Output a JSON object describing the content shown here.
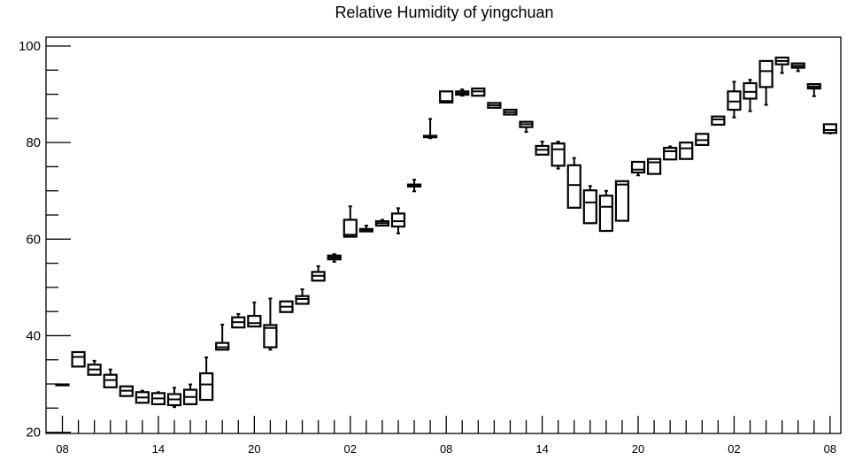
{
  "chart_data": {
    "type": "box",
    "title": "Relative Humidity of yingchuan",
    "xlabel": "",
    "ylabel": "",
    "ylim": [
      20,
      101.5
    ],
    "y_ticks": [
      "20",
      "40",
      "60",
      "80",
      "100"
    ],
    "x_ticks": [
      "08",
      "14",
      "20",
      "02",
      "08",
      "14",
      "20",
      "02",
      "08"
    ],
    "grid": false,
    "boxes": [
      {
        "hour": 0,
        "min": 29.9,
        "q1": 29.9,
        "median": 29.9,
        "q3": 29.9,
        "max": 29.9
      },
      {
        "hour": 1,
        "min": 33.6,
        "q1": 33.6,
        "median": 35.6,
        "q3": 36.6,
        "max": 36.6
      },
      {
        "hour": 2,
        "min": 31.9,
        "q1": 31.9,
        "median": 33.0,
        "q3": 34.0,
        "max": 34.8
      },
      {
        "hour": 3,
        "min": 29.3,
        "q1": 29.3,
        "median": 30.8,
        "q3": 31.9,
        "max": 33.0
      },
      {
        "hour": 4,
        "min": 27.5,
        "q1": 27.5,
        "median": 28.6,
        "q3": 29.5,
        "max": 29.5
      },
      {
        "hour": 5,
        "min": 26.1,
        "q1": 26.1,
        "median": 27.2,
        "q3": 28.3,
        "max": 28.6
      },
      {
        "hour": 6,
        "min": 25.8,
        "q1": 25.8,
        "median": 27.0,
        "q3": 28.1,
        "max": 28.3
      },
      {
        "hour": 7,
        "min": 25.2,
        "q1": 25.6,
        "median": 26.8,
        "q3": 27.9,
        "max": 29.2
      },
      {
        "hour": 8,
        "min": 25.8,
        "q1": 25.8,
        "median": 27.3,
        "q3": 28.8,
        "max": 29.9
      },
      {
        "hour": 9,
        "min": 26.7,
        "q1": 26.7,
        "median": 29.9,
        "q3": 32.2,
        "max": 35.5
      },
      {
        "hour": 10,
        "min": 37.1,
        "q1": 37.1,
        "median": 37.6,
        "q3": 38.5,
        "max": 42.3
      },
      {
        "hour": 11,
        "min": 41.7,
        "q1": 41.7,
        "median": 42.8,
        "q3": 43.8,
        "max": 44.5
      },
      {
        "hour": 12,
        "min": 41.9,
        "q1": 41.9,
        "median": 42.6,
        "q3": 44.1,
        "max": 46.9
      },
      {
        "hour": 13,
        "min": 37.1,
        "q1": 37.6,
        "median": 41.6,
        "q3": 42.2,
        "max": 47.7
      },
      {
        "hour": 14,
        "min": 44.9,
        "q1": 44.9,
        "median": 46.0,
        "q3": 47.1,
        "max": 47.1
      },
      {
        "hour": 15,
        "min": 46.6,
        "q1": 46.6,
        "median": 47.6,
        "q3": 48.2,
        "max": 49.6
      },
      {
        "hour": 16,
        "min": 51.4,
        "q1": 51.4,
        "median": 52.4,
        "q3": 53.2,
        "max": 54.4
      },
      {
        "hour": 17,
        "min": 55.3,
        "q1": 55.8,
        "median": 56.2,
        "q3": 56.6,
        "max": 56.9
      },
      {
        "hour": 18,
        "min": 60.5,
        "q1": 60.5,
        "median": 60.9,
        "q3": 64.0,
        "max": 66.8
      },
      {
        "hour": 19,
        "min": 61.6,
        "q1": 61.6,
        "median": 61.9,
        "q3": 62.1,
        "max": 62.8
      },
      {
        "hour": 20,
        "min": 62.8,
        "q1": 62.8,
        "median": 63.3,
        "q3": 63.7,
        "max": 64.0
      },
      {
        "hour": 21,
        "min": 61.2,
        "q1": 62.6,
        "median": 63.7,
        "q3": 65.3,
        "max": 66.4
      },
      {
        "hour": 22,
        "min": 69.9,
        "q1": 70.9,
        "median": 71.1,
        "q3": 71.3,
        "max": 72.3
      },
      {
        "hour": 23,
        "min": 80.9,
        "q1": 81.1,
        "median": 81.2,
        "q3": 81.4,
        "max": 84.9
      },
      {
        "hour": 24,
        "min": 88.3,
        "q1": 88.3,
        "median": 88.6,
        "q3": 90.6,
        "max": 90.6
      },
      {
        "hour": 25,
        "min": 89.7,
        "q1": 89.9,
        "median": 90.2,
        "q3": 90.6,
        "max": 91.0
      },
      {
        "hour": 26,
        "min": 89.7,
        "q1": 89.7,
        "median": 90.6,
        "q3": 91.2,
        "max": 91.2
      },
      {
        "hour": 27,
        "min": 87.2,
        "q1": 87.2,
        "median": 87.7,
        "q3": 88.2,
        "max": 88.2
      },
      {
        "hour": 28,
        "min": 85.8,
        "q1": 85.8,
        "median": 86.3,
        "q3": 86.8,
        "max": 86.8
      },
      {
        "hour": 29,
        "min": 82.2,
        "q1": 83.2,
        "median": 83.8,
        "q3": 84.3,
        "max": 84.3
      },
      {
        "hour": 30,
        "min": 77.5,
        "q1": 77.5,
        "median": 78.5,
        "q3": 79.3,
        "max": 80.2
      },
      {
        "hour": 31,
        "min": 74.6,
        "q1": 75.2,
        "median": 78.6,
        "q3": 79.8,
        "max": 80.2
      },
      {
        "hour": 32,
        "min": 66.5,
        "q1": 66.5,
        "median": 71.2,
        "q3": 75.3,
        "max": 76.8
      },
      {
        "hour": 33,
        "min": 63.3,
        "q1": 63.3,
        "median": 67.6,
        "q3": 70.1,
        "max": 71.0
      },
      {
        "hour": 34,
        "min": 61.7,
        "q1": 61.7,
        "median": 66.7,
        "q3": 69.0,
        "max": 70.0
      },
      {
        "hour": 35,
        "min": 63.8,
        "q1": 63.8,
        "median": 71.3,
        "q3": 72.0,
        "max": 72.0
      },
      {
        "hour": 36,
        "min": 73.2,
        "q1": 73.8,
        "median": 74.4,
        "q3": 76.0,
        "max": 76.0
      },
      {
        "hour": 37,
        "min": 73.5,
        "q1": 73.5,
        "median": 75.9,
        "q3": 76.6,
        "max": 76.6
      },
      {
        "hour": 38,
        "min": 76.5,
        "q1": 76.5,
        "median": 78.2,
        "q3": 78.9,
        "max": 79.2
      },
      {
        "hour": 39,
        "min": 76.6,
        "q1": 76.6,
        "median": 78.8,
        "q3": 80.0,
        "max": 80.0
      },
      {
        "hour": 40,
        "min": 79.5,
        "q1": 79.5,
        "median": 80.5,
        "q3": 81.8,
        "max": 81.8
      },
      {
        "hour": 41,
        "min": 83.7,
        "q1": 83.7,
        "median": 84.8,
        "q3": 85.4,
        "max": 85.4
      },
      {
        "hour": 42,
        "min": 85.2,
        "q1": 86.8,
        "median": 88.5,
        "q3": 90.6,
        "max": 92.6
      },
      {
        "hour": 43,
        "min": 86.5,
        "q1": 89.1,
        "median": 90.5,
        "q3": 92.3,
        "max": 93.0
      },
      {
        "hour": 44,
        "min": 87.8,
        "q1": 91.5,
        "median": 94.8,
        "q3": 96.9,
        "max": 96.9
      },
      {
        "hour": 45,
        "min": 94.4,
        "q1": 96.2,
        "median": 96.9,
        "q3": 97.6,
        "max": 97.6
      },
      {
        "hour": 46,
        "min": 94.8,
        "q1": 95.5,
        "median": 95.9,
        "q3": 96.4,
        "max": 96.4
      },
      {
        "hour": 47,
        "min": 89.6,
        "q1": 91.2,
        "median": 91.6,
        "q3": 92.1,
        "max": 92.1
      },
      {
        "hour": 48,
        "min": 81.9,
        "q1": 82.0,
        "median": 82.6,
        "q3": 83.8,
        "max": 83.8
      }
    ]
  }
}
